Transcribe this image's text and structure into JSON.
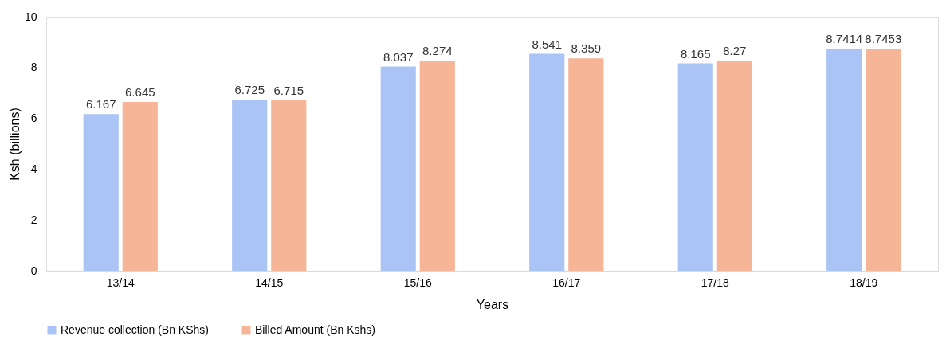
{
  "chart_data": {
    "type": "bar",
    "xlabel": "Years",
    "ylabel": "Ksh (billions)",
    "categories": [
      "13/14",
      "14/15",
      "15/16",
      "16/17",
      "17/18",
      "18/19"
    ],
    "series": [
      {
        "name": "Revenue collection (Bn KShs)",
        "color": "#a9c4f5",
        "values": [
          6.167,
          6.725,
          8.037,
          8.541,
          8.165,
          8.7414
        ]
      },
      {
        "name": "Billed Amount (Bn Kshs)",
        "color": "#f5b596",
        "values": [
          6.645,
          6.715,
          8.274,
          8.359,
          8.27,
          8.7453
        ]
      }
    ],
    "ylim": [
      0,
      10
    ],
    "yticks": [
      0,
      2,
      4,
      6,
      8,
      10
    ],
    "grid": false,
    "legend": "bottom",
    "data_labels": true
  }
}
